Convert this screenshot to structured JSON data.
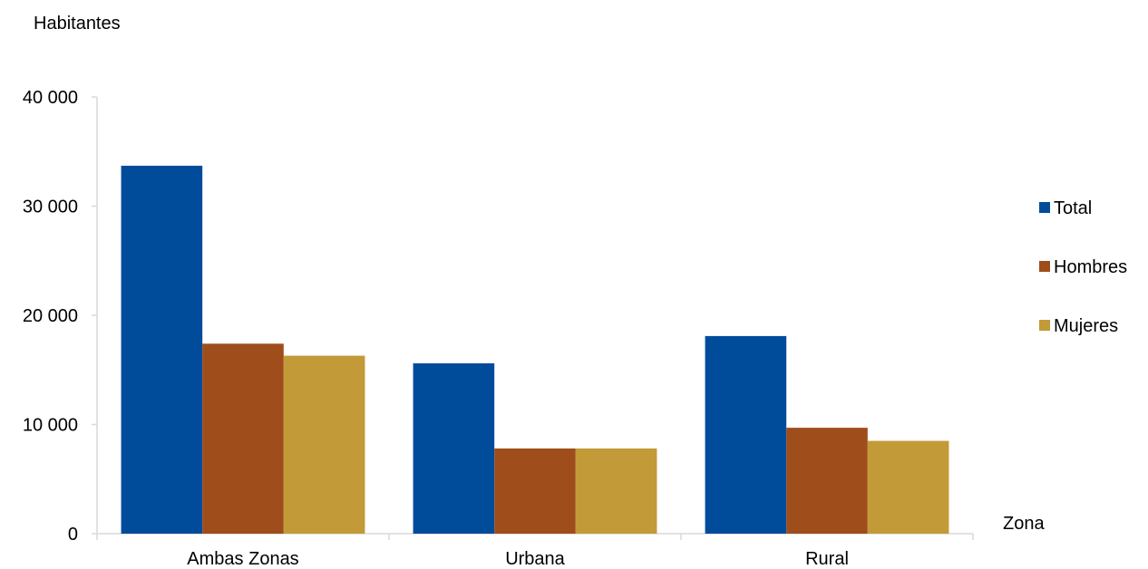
{
  "chart_data": {
    "type": "bar",
    "title": "",
    "ylabel": "Habitantes",
    "xlabel": "Zona",
    "categories": [
      "Ambas Zonas",
      "Urbana",
      "Rural"
    ],
    "ylim": [
      0,
      40000
    ],
    "yticks": [
      0,
      10000,
      20000,
      30000,
      40000
    ],
    "ytick_labels": [
      "0",
      "10 000",
      "20 000",
      "30 000",
      "40 000"
    ],
    "grid": false,
    "legend_position": "right",
    "series": [
      {
        "name": "Total",
        "color": "#004C9B",
        "values": [
          33700,
          15600,
          18100
        ]
      },
      {
        "name": "Hombres",
        "color": "#9E4D1B",
        "values": [
          17400,
          7800,
          9700
        ]
      },
      {
        "name": "Mujeres",
        "color": "#C39A38",
        "values": [
          16300,
          7800,
          8500
        ]
      }
    ]
  }
}
